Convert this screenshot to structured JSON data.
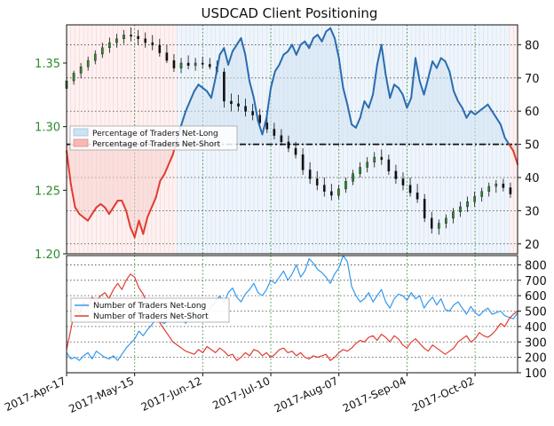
{
  "chart_data": [
    {
      "type": "line",
      "title": "USDCAD Client Positioning",
      "x_dates": [
        "2017-Apr-17",
        "2017-May-15",
        "2017-Jun-12",
        "2017-Jul-10",
        "2017-Aug-07",
        "2017-Sep-04",
        "2017-Oct-02"
      ],
      "price": {
        "ylim": [
          1.2,
          1.38
        ],
        "ticks": [
          "1.35",
          "1.30",
          "1.25",
          "1.20"
        ],
        "tick_values": [
          1.35,
          1.3,
          1.25,
          1.2
        ],
        "color": "#2e8b2e",
        "candles": [
          [
            0,
            1.33,
            1.34,
            1.326,
            1.336
          ],
          [
            2,
            1.336,
            1.344,
            1.333,
            1.342
          ],
          [
            4,
            1.342,
            1.35,
            1.338,
            1.347
          ],
          [
            6,
            1.347,
            1.355,
            1.344,
            1.352
          ],
          [
            8,
            1.352,
            1.36,
            1.349,
            1.357
          ],
          [
            10,
            1.357,
            1.366,
            1.354,
            1.362
          ],
          [
            12,
            1.362,
            1.37,
            1.358,
            1.366
          ],
          [
            14,
            1.366,
            1.373,
            1.362,
            1.369
          ],
          [
            16,
            1.369,
            1.376,
            1.365,
            1.372
          ],
          [
            18,
            1.372,
            1.378,
            1.367,
            1.371
          ],
          [
            20,
            1.371,
            1.376,
            1.364,
            1.369
          ],
          [
            22,
            1.369,
            1.374,
            1.362,
            1.366
          ],
          [
            24,
            1.366,
            1.372,
            1.36,
            1.364
          ],
          [
            26,
            1.364,
            1.369,
            1.355,
            1.358
          ],
          [
            28,
            1.358,
            1.364,
            1.35,
            1.352
          ],
          [
            30,
            1.352,
            1.357,
            1.343,
            1.346
          ],
          [
            32,
            1.346,
            1.354,
            1.342,
            1.35
          ],
          [
            34,
            1.35,
            1.356,
            1.345,
            1.348
          ],
          [
            36,
            1.348,
            1.354,
            1.344,
            1.35
          ],
          [
            38,
            1.35,
            1.355,
            1.346,
            1.349
          ],
          [
            40,
            1.349,
            1.354,
            1.345,
            1.347
          ],
          [
            42,
            1.347,
            1.352,
            1.341,
            1.343
          ],
          [
            44,
            1.343,
            1.346,
            1.315,
            1.32
          ],
          [
            46,
            1.32,
            1.326,
            1.312,
            1.318
          ],
          [
            48,
            1.318,
            1.325,
            1.312,
            1.316
          ],
          [
            50,
            1.316,
            1.322,
            1.308,
            1.312
          ],
          [
            52,
            1.312,
            1.318,
            1.305,
            1.309
          ],
          [
            54,
            1.309,
            1.314,
            1.3,
            1.303
          ],
          [
            56,
            1.303,
            1.308,
            1.295,
            1.298
          ],
          [
            58,
            1.298,
            1.303,
            1.29,
            1.293
          ],
          [
            60,
            1.293,
            1.298,
            1.285,
            1.288
          ],
          [
            62,
            1.288,
            1.293,
            1.28,
            1.283
          ],
          [
            64,
            1.283,
            1.288,
            1.275,
            1.278
          ],
          [
            66,
            1.278,
            1.283,
            1.262,
            1.266
          ],
          [
            68,
            1.266,
            1.272,
            1.255,
            1.259
          ],
          [
            70,
            1.259,
            1.265,
            1.25,
            1.254
          ],
          [
            72,
            1.254,
            1.26,
            1.245,
            1.249
          ],
          [
            74,
            1.249,
            1.255,
            1.242,
            1.246
          ],
          [
            76,
            1.246,
            1.254,
            1.243,
            1.251
          ],
          [
            78,
            1.251,
            1.26,
            1.248,
            1.257
          ],
          [
            80,
            1.257,
            1.266,
            1.254,
            1.263
          ],
          [
            82,
            1.263,
            1.272,
            1.26,
            1.268
          ],
          [
            84,
            1.268,
            1.276,
            1.264,
            1.272
          ],
          [
            86,
            1.272,
            1.28,
            1.268,
            1.276
          ],
          [
            88,
            1.276,
            1.282,
            1.27,
            1.274
          ],
          [
            90,
            1.274,
            1.278,
            1.262,
            1.265
          ],
          [
            92,
            1.265,
            1.27,
            1.255,
            1.259
          ],
          [
            94,
            1.259,
            1.264,
            1.25,
            1.254
          ],
          [
            96,
            1.254,
            1.26,
            1.245,
            1.248
          ],
          [
            98,
            1.248,
            1.255,
            1.24,
            1.243
          ],
          [
            100,
            1.243,
            1.247,
            1.225,
            1.228
          ],
          [
            102,
            1.228,
            1.233,
            1.216,
            1.22
          ],
          [
            104,
            1.22,
            1.227,
            1.215,
            1.224
          ],
          [
            106,
            1.224,
            1.231,
            1.22,
            1.228
          ],
          [
            108,
            1.228,
            1.236,
            1.224,
            1.233
          ],
          [
            110,
            1.233,
            1.241,
            1.229,
            1.237
          ],
          [
            112,
            1.237,
            1.245,
            1.233,
            1.241
          ],
          [
            114,
            1.241,
            1.249,
            1.237,
            1.245
          ],
          [
            116,
            1.245,
            1.252,
            1.241,
            1.249
          ],
          [
            118,
            1.249,
            1.256,
            1.245,
            1.253
          ],
          [
            120,
            1.253,
            1.258,
            1.248,
            1.255
          ],
          [
            122,
            1.255,
            1.259,
            1.249,
            1.252
          ],
          [
            124,
            1.252,
            1.256,
            1.244,
            1.247
          ]
        ],
        "x_max": 126
      },
      "percent": {
        "ylim": [
          17,
          86
        ],
        "ticks": [
          "80",
          "70",
          "60",
          "50",
          "40",
          "30",
          "20"
        ],
        "tick_values": [
          80,
          70,
          60,
          50,
          40,
          30,
          20
        ],
        "threshold": 50,
        "net_long_color": "#2b6cb0",
        "net_short_color": "#e03c31",
        "values": [
          48,
          38,
          31,
          29,
          28,
          27,
          29,
          31,
          32,
          31,
          29,
          31,
          33,
          33,
          30,
          25,
          22,
          27,
          23,
          28,
          31,
          34,
          39,
          41,
          44,
          47,
          52,
          56,
          60,
          63,
          66,
          68,
          67,
          66,
          64,
          70,
          77,
          79,
          74,
          78,
          80,
          82,
          77,
          69,
          64,
          57,
          53,
          58,
          67,
          72,
          74,
          77,
          78,
          80,
          77,
          80,
          81,
          79,
          82,
          83,
          81,
          84,
          85,
          82,
          76,
          67,
          62,
          56,
          55,
          58,
          63,
          61,
          65,
          74,
          80,
          71,
          64,
          68,
          67,
          65,
          61,
          64,
          76,
          69,
          65,
          70,
          75,
          73,
          76,
          75,
          72,
          66,
          63,
          61,
          58,
          60,
          59,
          60,
          61,
          62,
          60,
          58,
          56,
          52,
          50,
          48,
          44
        ]
      },
      "legend_top": {
        "position": "upper-left",
        "entries": [
          "Percentage of Traders Net-Long",
          "Percentage of Traders Net-Short"
        ]
      }
    },
    {
      "type": "line",
      "ylim": [
        100,
        860
      ],
      "ticks": [
        "800",
        "700",
        "600",
        "500",
        "400",
        "300",
        "200",
        "100"
      ],
      "tick_values": [
        800,
        700,
        600,
        500,
        400,
        300,
        200,
        100
      ],
      "series": [
        {
          "name": "Number of Traders Net-Long",
          "color": "#3399ee",
          "values": [
            230,
            190,
            200,
            180,
            210,
            230,
            190,
            240,
            220,
            200,
            190,
            210,
            180,
            220,
            260,
            290,
            320,
            370,
            340,
            380,
            410,
            450,
            430,
            420,
            440,
            480,
            450,
            470,
            420,
            480,
            500,
            440,
            520,
            480,
            530,
            560,
            600,
            550,
            620,
            650,
            590,
            560,
            610,
            640,
            680,
            620,
            600,
            640,
            700,
            680,
            720,
            760,
            700,
            740,
            800,
            720,
            760,
            840,
            810,
            770,
            750,
            720,
            680,
            740,
            780,
            860,
            820,
            660,
            600,
            560,
            580,
            620,
            560,
            600,
            640,
            560,
            520,
            580,
            610,
            600,
            570,
            620,
            580,
            600,
            520,
            560,
            590,
            540,
            580,
            510,
            500,
            540,
            560,
            520,
            480,
            530,
            490,
            470,
            500,
            520,
            480,
            490,
            500,
            470,
            460,
            450,
            490
          ]
        },
        {
          "name": "Number of Traders Net-Short",
          "color": "#e03c31",
          "values": [
            250,
            380,
            520,
            480,
            560,
            520,
            590,
            560,
            600,
            620,
            580,
            640,
            680,
            640,
            700,
            740,
            720,
            650,
            610,
            540,
            500,
            470,
            420,
            380,
            340,
            300,
            280,
            260,
            240,
            230,
            220,
            250,
            230,
            270,
            250,
            230,
            260,
            240,
            210,
            220,
            180,
            200,
            230,
            210,
            250,
            240,
            210,
            230,
            200,
            220,
            250,
            260,
            230,
            240,
            210,
            230,
            200,
            190,
            210,
            200,
            210,
            220,
            180,
            200,
            230,
            250,
            240,
            260,
            290,
            310,
            300,
            330,
            340,
            310,
            350,
            330,
            300,
            340,
            320,
            280,
            260,
            300,
            320,
            290,
            260,
            240,
            280,
            260,
            240,
            220,
            240,
            260,
            300,
            320,
            340,
            300,
            320,
            360,
            340,
            330,
            350,
            380,
            420,
            400,
            450,
            480,
            500
          ]
        }
      ],
      "legend": {
        "position": "upper-left",
        "entries": [
          "Number of Traders Net-Long",
          "Number of Traders Net-Short"
        ]
      }
    }
  ]
}
